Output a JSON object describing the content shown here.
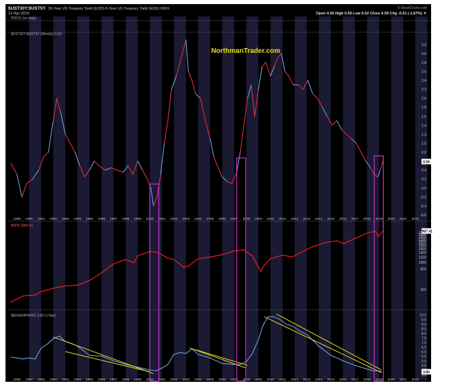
{
  "header": {
    "symbol": "$UST30Y:$UST5Y",
    "description": "30-Year US Treasury Yield (EOD)-5-Year US Treasury Yield (EOD) INDX",
    "date": "12-Apr-2019",
    "attribution": "© StockCharts.com",
    "ohlc": "Open 0.55  High 0.59  Low 0.52  Close 0.59  Chg -0.01 (-1.67%) ▼",
    "price_legend": "PRICE (no data)",
    "weekly_legend": "$UST30Y:$UST5Y (Weekly) 0.59"
  },
  "watermark": "NorthmanTrader.com",
  "colors": {
    "background": "#000000",
    "band": "#1a1a33",
    "axis_text": "#c8c8c8",
    "spread_line": "#e03040",
    "spread_line_alt": "#6ea0e0",
    "spx_line": "#ff2020",
    "unrate_line": "#6ea0e0",
    "trend_line": "#e8e020",
    "highlight_box": "#d030d0",
    "watermark": "#e8e020",
    "price_label_bg": "#ffffff"
  },
  "chart_data": [
    {
      "type": "line",
      "series": [
        {
          "name": "$UST30Y:$UST5Y (Weekly)",
          "x": [
            1988.5,
            1989.0,
            1989.4,
            1989.8,
            1990.3,
            1990.8,
            1991.2,
            1991.6,
            1992.0,
            1992.3,
            1992.6,
            1993.0,
            1993.4,
            1993.8,
            1994.2,
            1994.6,
            1995.0,
            1995.4,
            1995.8,
            1996.3,
            1996.8,
            1997.3,
            1997.8,
            1998.2,
            1998.6,
            1999.0,
            1999.4,
            1999.8,
            2000.1,
            2000.3,
            2000.6,
            2000.9,
            2001.2,
            2001.5,
            2001.8,
            2002.2,
            2002.6,
            2003.0,
            2003.2,
            2003.5,
            2003.8,
            2004.2,
            2004.6,
            2005.0,
            2005.3,
            2005.6,
            2006.0,
            2006.4,
            2006.8,
            2007.2,
            2007.5,
            2007.8,
            2008.1,
            2008.4,
            2008.7,
            2009.0,
            2009.3,
            2009.6,
            2010.0,
            2010.3,
            2010.6,
            2010.9,
            2011.2,
            2011.5,
            2011.9,
            2012.3,
            2012.7,
            2013.1,
            2013.5,
            2013.9,
            2014.3,
            2014.7,
            2015.1,
            2015.5,
            2015.9,
            2016.3,
            2016.7,
            2017.1,
            2017.5,
            2017.9,
            2018.3,
            2018.6,
            2018.9,
            2019.1,
            2019.3
          ],
          "y": [
            0.55,
            0.3,
            -0.2,
            0.1,
            0.2,
            0.4,
            0.7,
            0.8,
            1.5,
            2.0,
            1.7,
            1.2,
            1.0,
            0.8,
            0.5,
            0.25,
            0.4,
            0.6,
            0.5,
            0.4,
            0.45,
            0.4,
            0.35,
            0.5,
            0.3,
            0.6,
            0.4,
            0.2,
            0.0,
            -0.4,
            -0.2,
            0.3,
            1.0,
            1.5,
            2.2,
            2.5,
            2.9,
            3.3,
            2.6,
            2.4,
            2.1,
            2.0,
            1.5,
            1.1,
            0.7,
            0.5,
            0.25,
            0.15,
            0.1,
            0.35,
            0.8,
            1.4,
            2.0,
            2.3,
            1.6,
            2.2,
            2.7,
            2.8,
            2.5,
            2.7,
            2.9,
            3.0,
            2.6,
            2.5,
            2.3,
            2.3,
            2.2,
            2.4,
            2.1,
            2.0,
            1.8,
            1.6,
            1.4,
            1.5,
            1.3,
            1.2,
            1.1,
            1.0,
            0.8,
            0.6,
            0.45,
            0.3,
            0.25,
            0.4,
            0.59
          ]
        }
      ],
      "x_ticks": [
        "1989",
        "1990",
        "1991",
        "1992",
        "1993",
        "1994",
        "1995",
        "1996",
        "1997",
        "1998",
        "1999",
        "2000",
        "2001",
        "2002",
        "2003",
        "2004",
        "2005",
        "2006",
        "2007",
        "2008",
        "2009",
        "2010",
        "2011",
        "2012",
        "2013",
        "2014",
        "2015",
        "2016",
        "2017",
        "2018",
        "2019",
        "2020",
        "2021",
        "2022"
      ],
      "y_ticks": [
        "-0.6",
        "-0.4",
        "-0.2",
        "0.0",
        "0.2",
        "0.4",
        "0.6",
        "0.8",
        "1.0",
        "1.2",
        "1.4",
        "1.6",
        "1.8",
        "2.0",
        "2.2",
        "2.4",
        "2.6",
        "2.8",
        "3.0",
        "3.2"
      ],
      "ylim": [
        -0.6,
        3.35
      ],
      "last_value_label": "0.59"
    },
    {
      "type": "line",
      "legend": "$SPX 2907.41",
      "series": [
        {
          "name": "$SPX",
          "x": [
            1988.5,
            1989.5,
            1990.5,
            1991.0,
            1992.0,
            1993.0,
            1994.0,
            1995.0,
            1996.0,
            1997.0,
            1998.0,
            1998.7,
            1999.0,
            2000.0,
            2000.7,
            2001.5,
            2002.0,
            2002.8,
            2003.2,
            2004.0,
            2005.0,
            2006.0,
            2007.0,
            2007.8,
            2008.5,
            2009.2,
            2009.5,
            2010.0,
            2011.0,
            2011.8,
            2012.5,
            2013.5,
            2014.5,
            2015.5,
            2016.1,
            2017.0,
            2018.0,
            2018.7,
            2018.95,
            2019.3
          ],
          "y": [
            260,
            320,
            330,
            370,
            415,
            450,
            460,
            540,
            700,
            950,
            1100,
            990,
            1250,
            1450,
            1400,
            1150,
            1100,
            850,
            880,
            1130,
            1200,
            1300,
            1480,
            1530,
            1250,
            730,
            920,
            1130,
            1280,
            1200,
            1400,
            1700,
            1950,
            2080,
            1900,
            2250,
            2700,
            2900,
            2400,
            2907
          ]
        }
      ],
      "y_ticks": [
        "400",
        "800",
        "1000",
        "1200",
        "1400",
        "1600",
        "1800",
        "2000",
        "2200",
        "2400",
        "2600",
        "2800"
      ],
      "ylim": [
        210,
        3000
      ],
      "scale": "log",
      "last_value_label": "2907.41"
    },
    {
      "type": "line",
      "legend": "$$UNEMPRATE 3.80 (1 Mar)",
      "series": [
        {
          "name": "$$UNEMPRATE",
          "x": [
            1988.5,
            1989.0,
            1989.5,
            1990.0,
            1990.5,
            1991.0,
            1991.5,
            1992.0,
            1992.5,
            1993.0,
            1993.5,
            1994.0,
            1994.5,
            1995.0,
            1996.0,
            1997.0,
            1998.0,
            1999.0,
            2000.0,
            2000.5,
            2001.0,
            2001.5,
            2002.0,
            2002.5,
            2003.0,
            2003.5,
            2004.0,
            2005.0,
            2006.0,
            2007.0,
            2007.5,
            2008.0,
            2008.5,
            2009.0,
            2009.4,
            2009.8,
            2010.3,
            2010.8,
            2011.3,
            2011.8,
            2012.5,
            2013.0,
            2014.0,
            2015.0,
            2016.0,
            2017.0,
            2018.0,
            2018.5,
            2019.0,
            2019.2
          ],
          "y": [
            5.4,
            5.3,
            5.2,
            5.3,
            5.2,
            6.4,
            6.8,
            7.4,
            7.7,
            7.1,
            6.9,
            6.6,
            6.1,
            5.6,
            5.5,
            5.0,
            4.6,
            4.3,
            4.0,
            3.9,
            4.2,
            4.6,
            5.7,
            5.9,
            5.8,
            6.3,
            5.7,
            5.3,
            4.7,
            4.6,
            4.6,
            4.9,
            5.8,
            7.3,
            8.9,
            9.8,
            9.8,
            9.5,
            9.0,
            8.8,
            8.2,
            7.9,
            6.6,
            5.6,
            5.0,
            4.5,
            4.1,
            3.9,
            3.9,
            3.8
          ]
        }
      ],
      "y_ticks": [
        "3.5",
        "4.0",
        "4.5",
        "5.0",
        "5.5",
        "6.0",
        "6.5",
        "7.0",
        "7.5",
        "8.0",
        "8.5",
        "9.0",
        "9.5",
        "10.0"
      ],
      "ylim": [
        3.3,
        10.2
      ],
      "last_value_label": "3.80",
      "trend_lines": [
        {
          "x1": 1992.0,
          "y1": 7.6,
          "x2": 2000.3,
          "y2": 3.6
        },
        {
          "x1": 1993.0,
          "y1": 6.0,
          "x2": 2000.0,
          "y2": 3.8
        },
        {
          "x1": 2003.3,
          "y1": 6.4,
          "x2": 2008.0,
          "y2": 4.2
        },
        {
          "x1": 2003.8,
          "y1": 6.2,
          "x2": 2008.1,
          "y2": 4.5
        },
        {
          "x1": 2009.5,
          "y1": 9.8,
          "x2": 2019.2,
          "y2": 3.7
        },
        {
          "x1": 2010.5,
          "y1": 10.1,
          "x2": 2019.2,
          "y2": 4.0
        }
      ]
    }
  ],
  "highlights": [
    {
      "x1": 2000.0,
      "x2": 2000.75
    },
    {
      "x1": 2007.2,
      "x2": 2007.95
    },
    {
      "x1": 2018.6,
      "x2": 2019.35
    }
  ]
}
